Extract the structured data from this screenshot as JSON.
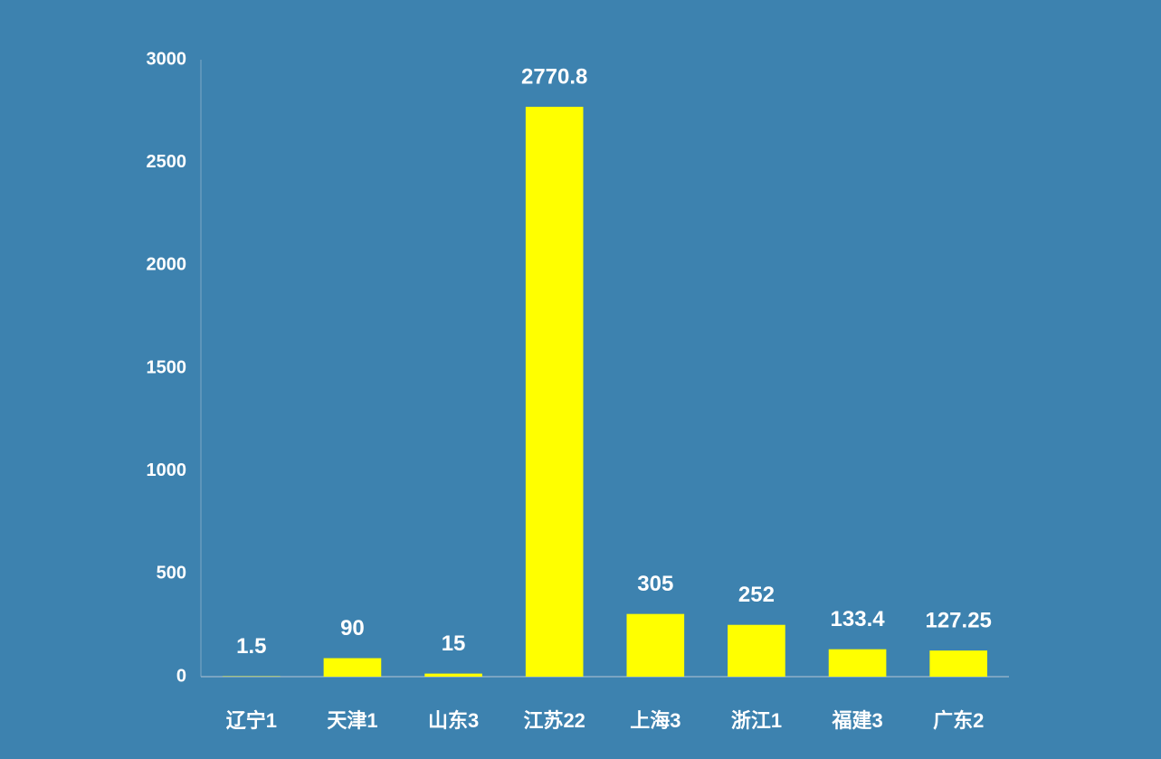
{
  "chart_data": {
    "type": "bar",
    "categories": [
      "辽宁1",
      "天津1",
      "山东3",
      "江苏22",
      "上海3",
      "浙江1",
      "福建3",
      "广东2"
    ],
    "values": [
      1.5,
      90,
      15,
      2770.8,
      305,
      252,
      133.4,
      127.25
    ],
    "color": "#ffff00",
    "ylim": [
      0,
      3000
    ],
    "yticks": [
      0,
      500,
      1000,
      1500,
      2000,
      2500,
      3000
    ],
    "grid": false
  }
}
